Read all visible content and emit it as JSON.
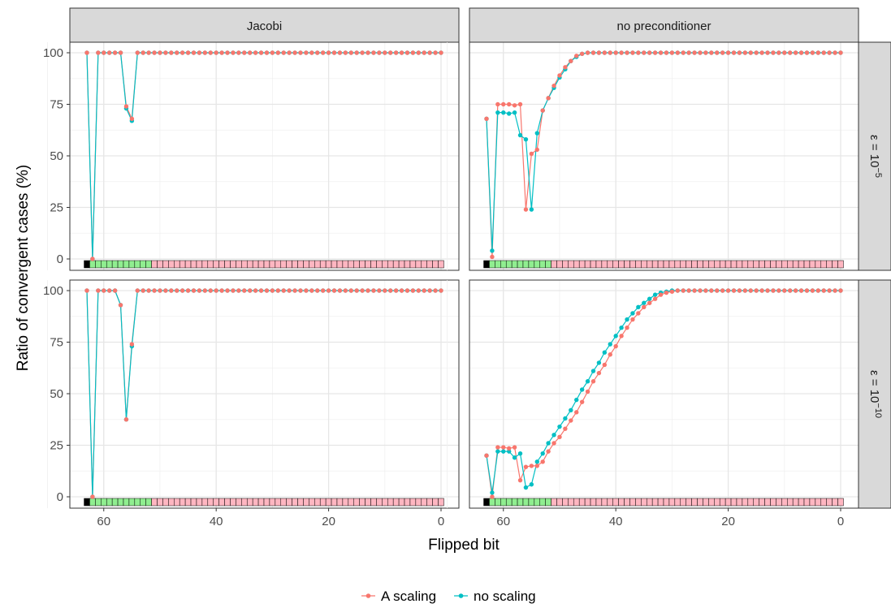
{
  "chart_data": {
    "type": "line",
    "facet_columns": [
      "Jacobi",
      "no preconditioner"
    ],
    "facet_rows": [
      {
        "base": "ε = 10",
        "exponent": "−5"
      },
      {
        "base": "ε = 10",
        "exponent": "−10"
      }
    ],
    "xlabel": "Flipped bit",
    "ylabel": "Ratio of convergent cases (%)",
    "x_ticks": [
      60,
      40,
      20,
      0
    ],
    "y_ticks": [
      0,
      25,
      50,
      75,
      100
    ],
    "x_tick_labels": [
      "60",
      "40",
      "20",
      "0"
    ],
    "y_tick_labels": [
      "0",
      "25",
      "50",
      "75",
      "100"
    ],
    "xlim": [
      63,
      0
    ],
    "x_reversed": true,
    "ylim": [
      0,
      100
    ],
    "grid": true,
    "legend_position": "bottom",
    "legend": [
      {
        "label": "A scaling",
        "color": "#F8766D"
      },
      {
        "label": "no scaling",
        "color": "#00BFC4"
      }
    ],
    "bit_bands": [
      {
        "from": 63,
        "to": 63,
        "color": "#000000"
      },
      {
        "from": 62,
        "to": 52,
        "color": "#90EE90"
      },
      {
        "from": 51,
        "to": 0,
        "color": "#FFB6C1"
      }
    ],
    "panels": [
      {
        "col": 0,
        "row": 0,
        "series": [
          {
            "name": "A scaling",
            "color": "#F8766D",
            "points": [
              [
                63,
                100
              ],
              [
                62,
                0
              ],
              [
                61,
                100
              ],
              [
                60,
                100
              ],
              [
                59,
                100
              ],
              [
                58,
                100
              ],
              [
                57,
                100
              ],
              [
                56,
                74
              ],
              [
                55,
                68
              ]
            ],
            "rest_value": 100
          },
          {
            "name": "no scaling",
            "color": "#00BFC4",
            "points": [
              [
                63,
                100
              ],
              [
                62,
                0
              ],
              [
                61,
                100
              ],
              [
                60,
                100
              ],
              [
                59,
                100
              ],
              [
                58,
                100
              ],
              [
                57,
                100
              ],
              [
                56,
                73
              ],
              [
                55,
                67
              ]
            ],
            "rest_value": 100
          }
        ]
      },
      {
        "col": 1,
        "row": 0,
        "series": [
          {
            "name": "A scaling",
            "color": "#F8766D",
            "points": [
              [
                63,
                68
              ],
              [
                62,
                1
              ],
              [
                61,
                75
              ],
              [
                60,
                75
              ],
              [
                59,
                75
              ],
              [
                58,
                74.5
              ],
              [
                57,
                75
              ],
              [
                56,
                24
              ],
              [
                55,
                51
              ],
              [
                54,
                53
              ],
              [
                53,
                72
              ],
              [
                52,
                78
              ],
              [
                51,
                84
              ],
              [
                50,
                89
              ],
              [
                49,
                93
              ],
              [
                48,
                96
              ],
              [
                47,
                98.5
              ],
              [
                46,
                99.5
              ]
            ],
            "rest_value": 100
          },
          {
            "name": "no scaling",
            "color": "#00BFC4",
            "points": [
              [
                63,
                68
              ],
              [
                62,
                4
              ],
              [
                61,
                71
              ],
              [
                60,
                71
              ],
              [
                59,
                70.5
              ],
              [
                58,
                71
              ],
              [
                57,
                60
              ],
              [
                56,
                58
              ],
              [
                55,
                24
              ],
              [
                54,
                61
              ],
              [
                53,
                72
              ],
              [
                52,
                78
              ],
              [
                51,
                83
              ],
              [
                50,
                88
              ],
              [
                49,
                92
              ],
              [
                48,
                96
              ],
              [
                47,
                98
              ],
              [
                46,
                99.5
              ]
            ],
            "rest_value": 100
          }
        ]
      },
      {
        "col": 0,
        "row": 1,
        "series": [
          {
            "name": "A scaling",
            "color": "#F8766D",
            "points": [
              [
                63,
                100
              ],
              [
                62,
                0
              ],
              [
                61,
                100
              ],
              [
                60,
                100
              ],
              [
                59,
                100
              ],
              [
                58,
                100
              ],
              [
                57,
                93
              ],
              [
                56,
                37.5
              ],
              [
                55,
                74
              ]
            ],
            "rest_value": 100
          },
          {
            "name": "no scaling",
            "color": "#00BFC4",
            "points": [
              [
                63,
                100
              ],
              [
                62,
                0
              ],
              [
                61,
                100
              ],
              [
                60,
                100
              ],
              [
                59,
                100
              ],
              [
                58,
                100
              ],
              [
                57,
                93
              ],
              [
                56,
                37.5
              ],
              [
                55,
                73
              ]
            ],
            "rest_value": 100
          }
        ]
      },
      {
        "col": 1,
        "row": 1,
        "series": [
          {
            "name": "A scaling",
            "color": "#F8766D",
            "points": [
              [
                63,
                20
              ],
              [
                62,
                0
              ],
              [
                61,
                24
              ],
              [
                60,
                24
              ],
              [
                59,
                23.5
              ],
              [
                58,
                24
              ],
              [
                57,
                8
              ],
              [
                56,
                14.5
              ],
              [
                55,
                15
              ],
              [
                54,
                15
              ],
              [
                53,
                17
              ],
              [
                52,
                22
              ],
              [
                51,
                26
              ],
              [
                50,
                29
              ],
              [
                49,
                33
              ],
              [
                48,
                37
              ],
              [
                47,
                41
              ],
              [
                46,
                46
              ],
              [
                45,
                51
              ],
              [
                44,
                56
              ],
              [
                43,
                60
              ],
              [
                42,
                64
              ],
              [
                41,
                69
              ],
              [
                40,
                73
              ],
              [
                39,
                78
              ],
              [
                38,
                82
              ],
              [
                37,
                86
              ],
              [
                36,
                89
              ],
              [
                35,
                92
              ],
              [
                34,
                94
              ],
              [
                33,
                96
              ],
              [
                32,
                98
              ],
              [
                31,
                99
              ],
              [
                30,
                99.5
              ]
            ],
            "rest_value": 100
          },
          {
            "name": "no scaling",
            "color": "#00BFC4",
            "points": [
              [
                63,
                20
              ],
              [
                62,
                2
              ],
              [
                61,
                22
              ],
              [
                60,
                22
              ],
              [
                59,
                22
              ],
              [
                58,
                19
              ],
              [
                57,
                21
              ],
              [
                56,
                4.5
              ],
              [
                55,
                6
              ],
              [
                54,
                17
              ],
              [
                53,
                21
              ],
              [
                52,
                26
              ],
              [
                51,
                30
              ],
              [
                50,
                34
              ],
              [
                49,
                38
              ],
              [
                48,
                42
              ],
              [
                47,
                47
              ],
              [
                46,
                52
              ],
              [
                45,
                56
              ],
              [
                44,
                61
              ],
              [
                43,
                65
              ],
              [
                42,
                70
              ],
              [
                41,
                74
              ],
              [
                40,
                78
              ],
              [
                39,
                82
              ],
              [
                38,
                86
              ],
              [
                37,
                89
              ],
              [
                36,
                92
              ],
              [
                35,
                94
              ],
              [
                34,
                96
              ],
              [
                33,
                98
              ],
              [
                32,
                99
              ],
              [
                31,
                99.5
              ],
              [
                30,
                100
              ]
            ],
            "rest_value": 100
          }
        ]
      }
    ]
  }
}
